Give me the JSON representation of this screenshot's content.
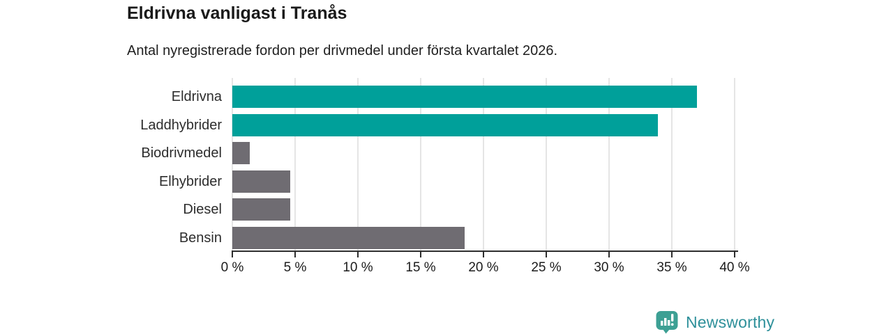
{
  "title": "Eldrivna vanligast i Tranås",
  "subtitle": "Antal nyregistrerade fordon per drivmedel under första kvartalet 2026.",
  "chart_data": {
    "type": "bar",
    "orientation": "horizontal",
    "categories": [
      "Eldrivna",
      "Laddhybrider",
      "Biodrivmedel",
      "Elhybrider",
      "Diesel",
      "Bensin"
    ],
    "values": [
      37.0,
      33.9,
      1.4,
      4.6,
      4.6,
      18.5
    ],
    "bar_colors": [
      "#00a09a",
      "#00a09a",
      "#6f6c72",
      "#6f6c72",
      "#6f6c72",
      "#6f6c72"
    ],
    "x_tick_values": [
      0,
      5,
      10,
      15,
      20,
      25,
      30,
      35,
      40
    ],
    "x_tick_labels": [
      "0 %",
      "5 %",
      "10 %",
      "15 %",
      "20 %",
      "25 %",
      "30 %",
      "35 %",
      "40 %"
    ],
    "xlim": [
      0,
      40
    ],
    "unit": "%",
    "grid": true,
    "legend": "none"
  },
  "colors": {
    "highlight_teal": "#00a09a",
    "neutral_gray": "#6f6c72",
    "gridline": "#e5e5e5",
    "axis": "#2d2d2d",
    "title_text": "#1a1a1a",
    "logo_icon_teal": "#3da094",
    "logo_text_teal": "#2e909a"
  },
  "footer": {
    "brand": "Newsworthy",
    "logo_icon": "newsworthy-chart-bubble-icon"
  }
}
